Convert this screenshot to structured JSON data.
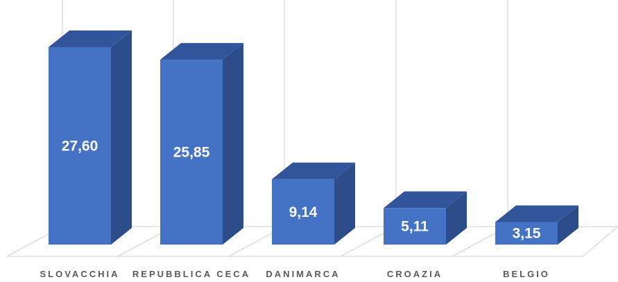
{
  "chart_data": {
    "type": "bar3d",
    "categories": [
      "SLOVACCHIA",
      "REPUBBLICA CECA",
      "DANIMARCA",
      "CROAZIA",
      "BELGIO"
    ],
    "values": [
      27.6,
      25.85,
      9.14,
      5.11,
      3.15
    ],
    "value_labels": [
      "27,60",
      "25,85",
      "9,14",
      "5,11",
      "3,15"
    ],
    "color": "#4472c4"
  }
}
